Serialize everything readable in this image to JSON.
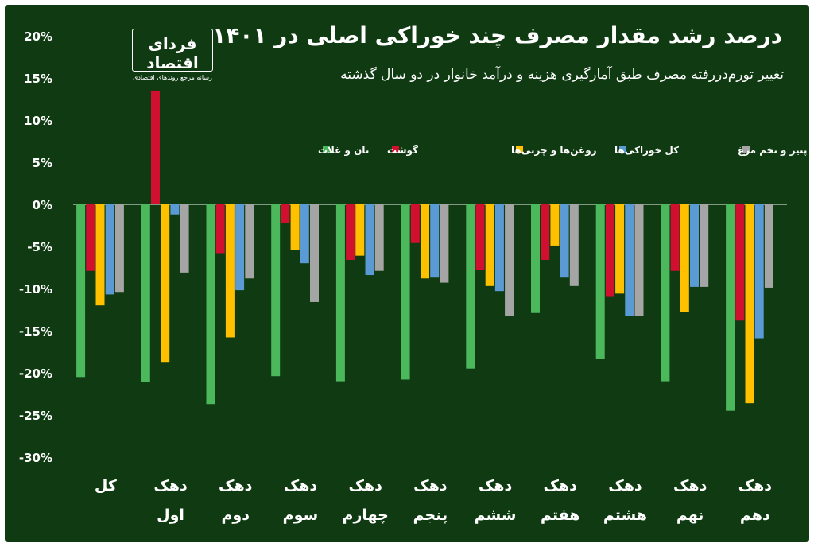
{
  "header": {
    "title": "درصد رشد مقدار مصرف چند خوراکی اصلی در ۱۴۰۱",
    "subtitle": "تغییر تورم‌دررفته مصرف طبق آمارگیری هزینه و درآمد خانوار در دو سال گذشته"
  },
  "logo": {
    "name": "فردای اقتصاد",
    "tagline": "رسانه مرجع روندهای اقتصادی"
  },
  "colors": {
    "background": "#0f3a12",
    "gridline": "#c8d2c8",
    "text": "#ffffff"
  },
  "chart_data": {
    "type": "bar",
    "title": "درصد رشد مقدار مصرف چند خوراکی اصلی در ۱۴۰۱",
    "subtitle": "تغییر تورم‌دررفته مصرف طبق آمارگیری هزینه و درآمد خانوار در دو سال گذشته",
    "ylim": [
      -30,
      20
    ],
    "yticks": [
      20,
      15,
      10,
      5,
      0,
      -5,
      -10,
      -15,
      -20,
      -25,
      -30
    ],
    "ytick_labels": [
      "20%",
      "15%",
      "10%",
      "5%",
      "0%",
      "-5%",
      "-10%",
      "-15%",
      "-20%",
      "-25%",
      "-30%"
    ],
    "grid": "zero-line",
    "legend_position": "top",
    "categories": [
      {
        "line1": "کل",
        "line2": ""
      },
      {
        "line1": "دهک",
        "line2": "اول"
      },
      {
        "line1": "دهک",
        "line2": "دوم"
      },
      {
        "line1": "دهک",
        "line2": "سوم"
      },
      {
        "line1": "دهک",
        "line2": "چهارم"
      },
      {
        "line1": "دهک",
        "line2": "پنجم"
      },
      {
        "line1": "دهک",
        "line2": "ششم"
      },
      {
        "line1": "دهک",
        "line2": "هفتم"
      },
      {
        "line1": "دهک",
        "line2": "هشتم"
      },
      {
        "line1": "دهک",
        "line2": "نهم"
      },
      {
        "line1": "دهک",
        "line2": "دهم"
      }
    ],
    "series": [
      {
        "name": "نان و غلات",
        "color": "#4cb85c",
        "values": [
          -20.5,
          -21.1,
          -23.7,
          -20.4,
          -21.0,
          -20.8,
          -19.5,
          -12.9,
          -18.3,
          -21.0,
          -24.5
        ]
      },
      {
        "name": "گوشت",
        "color": "#d0102e",
        "values": [
          -7.9,
          13.5,
          -5.8,
          -2.2,
          -6.6,
          -4.6,
          -7.8,
          -6.6,
          -10.9,
          -7.9,
          -13.8
        ]
      },
      {
        "name": "روغن‌ها و چربی‌ها",
        "color": "#ffc000",
        "values": [
          -12.0,
          -18.7,
          -15.8,
          -5.4,
          -6.1,
          -8.8,
          -9.7,
          -4.9,
          -10.6,
          -12.8,
          -23.6
        ]
      },
      {
        "name": "کل خوراکی‌ها",
        "color": "#5b9bd5",
        "values": [
          -10.7,
          -1.2,
          -10.2,
          -7.0,
          -8.4,
          -8.7,
          -10.3,
          -8.7,
          -13.3,
          -9.8,
          -15.9
        ]
      },
      {
        "name": "شیر، پنیر و تخم مرغ",
        "color": "#a5a5a5",
        "values": [
          -10.4,
          -8.1,
          -8.8,
          -11.6,
          -7.9,
          -9.3,
          -13.3,
          -9.7,
          -13.3,
          -9.8,
          -9.9
        ]
      }
    ]
  }
}
